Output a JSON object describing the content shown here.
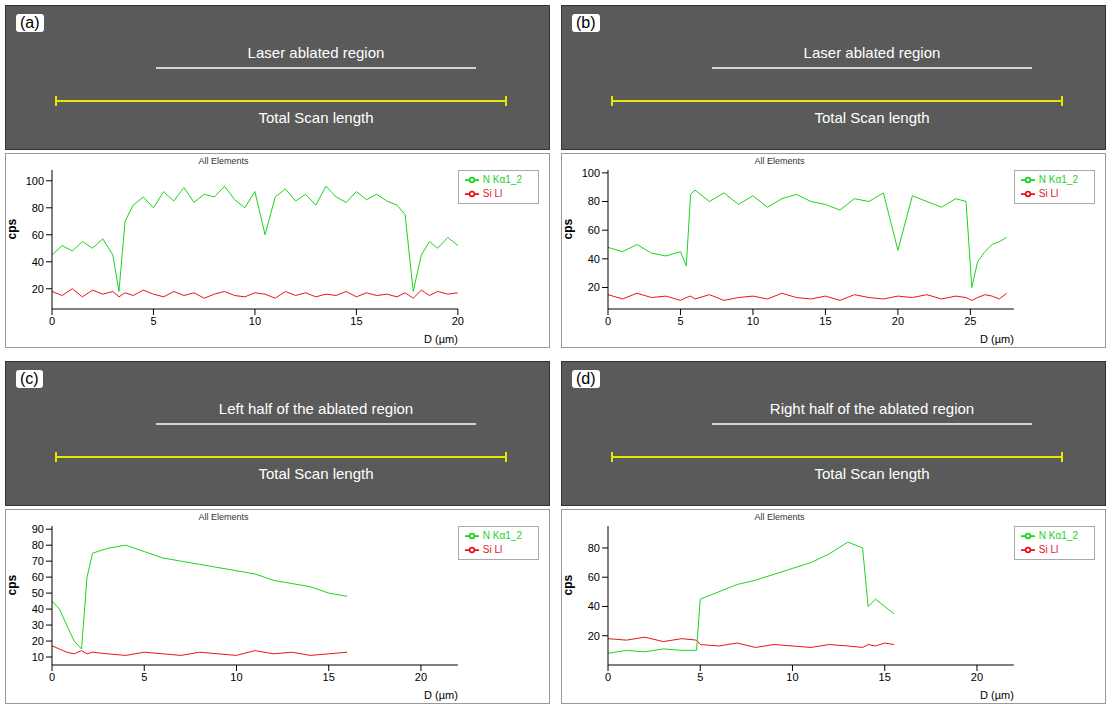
{
  "chart_data": [
    {
      "panel": "(a)",
      "type": "line",
      "title": "All Elements",
      "annotations": [
        "Laser ablated region",
        "Total Scan length"
      ],
      "x_label": "D (µm)",
      "y_label": "cps",
      "xlim": [
        0,
        20
      ],
      "xticks": [
        0,
        5,
        10,
        15,
        20
      ],
      "ylim": [
        5,
        108
      ],
      "yticks": [
        20,
        40,
        60,
        80,
        100
      ],
      "grid": false,
      "legend": "right",
      "x": [
        0,
        0.5,
        1,
        1.5,
        2,
        2.5,
        3,
        3.3,
        3.6,
        4,
        4.5,
        5,
        5.5,
        6,
        6.5,
        7,
        7.5,
        8,
        8.5,
        9,
        9.5,
        10,
        10.5,
        11,
        11.5,
        12,
        12.5,
        13,
        13.5,
        14,
        14.5,
        15,
        15.5,
        16,
        16.5,
        17,
        17.4,
        17.8,
        18.2,
        18.6,
        19,
        19.5,
        20
      ],
      "series": [
        {
          "name": "Si Ll",
          "color": "#e8141c",
          "values": [
            18,
            15,
            20,
            14,
            19,
            16,
            18,
            14,
            17,
            15,
            19,
            16,
            14,
            18,
            15,
            17,
            13,
            16,
            18,
            15,
            14,
            17,
            16,
            13,
            18,
            15,
            17,
            14,
            16,
            15,
            18,
            14,
            17,
            15,
            16,
            14,
            17,
            13,
            19,
            15,
            18,
            16,
            17
          ]
        },
        {
          "name": "N Kα1_2",
          "color": "#1ed21e",
          "values": [
            45,
            52,
            48,
            55,
            50,
            57,
            45,
            18,
            70,
            82,
            88,
            80,
            92,
            85,
            95,
            84,
            90,
            88,
            96,
            86,
            80,
            92,
            60,
            88,
            94,
            85,
            90,
            82,
            96,
            88,
            84,
            92,
            86,
            90,
            85,
            82,
            75,
            18,
            45,
            55,
            50,
            58,
            52
          ]
        }
      ]
    },
    {
      "panel": "(b)",
      "type": "line",
      "title": "All Elements",
      "annotations": [
        "Laser ablated region",
        "Total Scan length"
      ],
      "x_label": "D (µm)",
      "y_label": "cps",
      "xlim": [
        0,
        28
      ],
      "xticks": [
        0,
        5,
        10,
        15,
        20,
        25
      ],
      "ylim": [
        5,
        102
      ],
      "yticks": [
        20,
        40,
        60,
        80,
        100
      ],
      "grid": false,
      "legend": "right",
      "x": [
        0,
        1,
        2,
        3,
        4,
        5,
        5.4,
        5.7,
        6,
        7,
        8,
        9,
        10,
        11,
        12,
        13,
        14,
        15,
        16,
        17,
        18,
        19,
        20,
        21,
        22,
        23,
        24,
        24.7,
        25.1,
        25.5,
        26,
        26.5,
        27,
        27.5
      ],
      "series": [
        {
          "name": "Si Ll",
          "color": "#e8141c",
          "values": [
            15,
            12,
            16,
            13,
            14,
            11,
            13,
            14,
            12,
            15,
            11,
            13,
            14,
            12,
            16,
            13,
            12,
            14,
            11,
            15,
            13,
            12,
            14,
            13,
            15,
            12,
            14,
            13,
            11,
            13,
            15,
            14,
            12,
            16
          ]
        },
        {
          "name": "N Kα1_2",
          "color": "#1ed21e",
          "values": [
            48,
            45,
            50,
            44,
            42,
            45,
            35,
            85,
            88,
            80,
            86,
            78,
            84,
            76,
            82,
            85,
            80,
            78,
            74,
            82,
            80,
            86,
            46,
            84,
            80,
            76,
            82,
            80,
            20,
            38,
            45,
            50,
            52,
            55
          ]
        }
      ]
    },
    {
      "panel": "(c)",
      "type": "line",
      "title": "All Elements",
      "annotations": [
        "Left half of the ablated region",
        "Total Scan length"
      ],
      "x_label": "D (µm)",
      "y_label": "cps",
      "xlim": [
        0,
        22
      ],
      "xticks": [
        0,
        5,
        10,
        15,
        20
      ],
      "ylim": [
        5,
        92
      ],
      "yticks": [
        10,
        20,
        30,
        40,
        50,
        60,
        70,
        80,
        90
      ],
      "grid": false,
      "legend": "right",
      "x": [
        0,
        0.4,
        0.8,
        1.2,
        1.6,
        1.9,
        2.2,
        3,
        4,
        5,
        6,
        7,
        8,
        9,
        10,
        11,
        12,
        13,
        14,
        15,
        16
      ],
      "series": [
        {
          "name": "Si Ll",
          "color": "#e8141c",
          "values": [
            17,
            15,
            13,
            12,
            14,
            12,
            13,
            12,
            11,
            13,
            12,
            11,
            13,
            12,
            11,
            14,
            12,
            13,
            11,
            12,
            13
          ]
        },
        {
          "name": "N Kα1_2",
          "color": "#1ed21e",
          "values": [
            45,
            40,
            30,
            20,
            15,
            60,
            75,
            78,
            80,
            76,
            72,
            70,
            68,
            66,
            64,
            62,
            58,
            56,
            54,
            50,
            48
          ]
        }
      ]
    },
    {
      "panel": "(d)",
      "type": "line",
      "title": "All Elements",
      "annotations": [
        "Right half of the ablated region",
        "Total Scan length"
      ],
      "x_label": "D (µm)",
      "y_label": "cps",
      "xlim": [
        0,
        22
      ],
      "xticks": [
        0,
        5,
        10,
        15,
        20
      ],
      "ylim": [
        0,
        95
      ],
      "yticks": [
        20,
        40,
        60,
        80
      ],
      "grid": false,
      "legend": "right",
      "x": [
        0,
        1,
        2,
        3,
        4,
        4.8,
        5,
        6,
        7,
        8,
        9,
        10,
        11,
        12,
        13,
        13.8,
        14.1,
        14.5,
        15,
        15.5
      ],
      "series": [
        {
          "name": "Si Ll",
          "color": "#e8141c",
          "values": [
            18,
            17,
            19,
            16,
            18,
            17,
            14,
            13,
            15,
            12,
            14,
            13,
            12,
            14,
            13,
            12,
            14,
            13,
            15,
            14
          ]
        },
        {
          "name": "N Kα1_2",
          "color": "#1ed21e",
          "values": [
            8,
            10,
            9,
            11,
            10,
            10,
            45,
            50,
            55,
            58,
            62,
            66,
            70,
            76,
            84,
            80,
            40,
            45,
            40,
            35
          ]
        }
      ]
    }
  ]
}
